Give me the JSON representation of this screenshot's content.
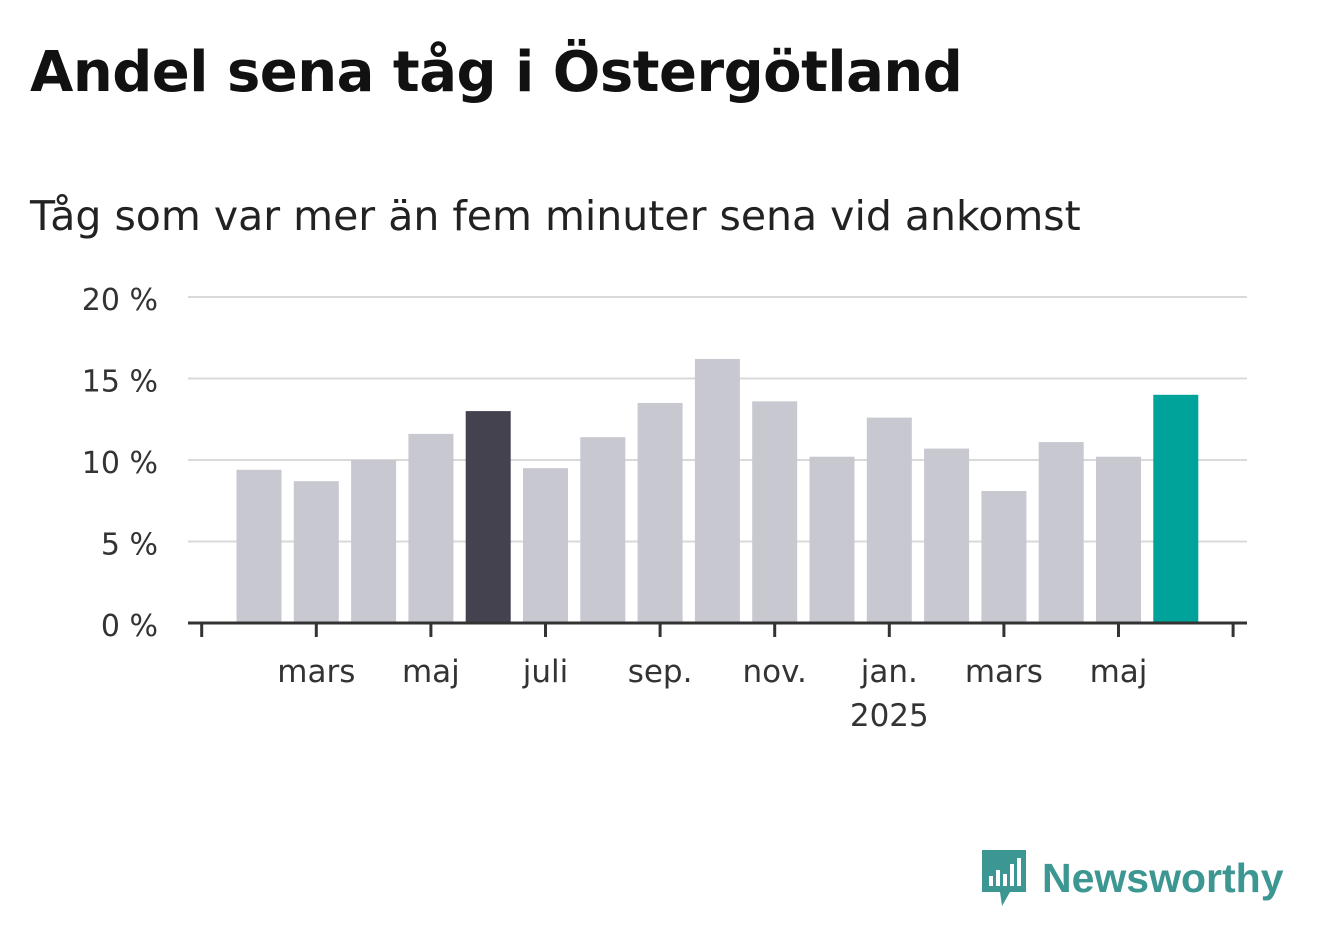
{
  "title": "Andel sena tåg i Östergötland",
  "subtitle": "Tåg som var mer än fem minuter sena vid ankomst",
  "brand": {
    "name": "Newsworthy",
    "color": "#3c9691"
  },
  "colors": {
    "bar": "#c8c8d0",
    "highlight_dark": "#44424f",
    "highlight_latest": "#00a39a",
    "grid": "#d9d9d9",
    "axis": "#333333"
  },
  "chart_data": {
    "type": "bar",
    "categories": [
      "2024-02",
      "2024-03",
      "2024-04",
      "2024-05",
      "2024-06",
      "2024-07",
      "2024-08",
      "2024-09",
      "2024-10",
      "2024-11",
      "2024-12",
      "2025-01",
      "2025-02",
      "2025-03",
      "2025-04",
      "2025-05",
      "2025-06"
    ],
    "values": [
      9.4,
      8.7,
      10.0,
      11.6,
      13.0,
      9.5,
      11.4,
      13.5,
      16.2,
      13.6,
      10.2,
      12.6,
      10.7,
      8.1,
      11.1,
      10.2,
      14.0
    ],
    "highlight": {
      "dark_index": 4,
      "latest_index": 16
    },
    "ylim": [
      0,
      20
    ],
    "yticks": [
      0,
      5,
      10,
      15,
      20
    ],
    "ytick_labels": [
      "0 %",
      "5 %",
      "10 %",
      "15 %",
      "20 %"
    ],
    "xtick_labels": [
      {
        "category": "2024-03",
        "label": "mars"
      },
      {
        "category": "2024-05",
        "label": "maj"
      },
      {
        "category": "2024-07",
        "label": "juli"
      },
      {
        "category": "2024-09",
        "label": "sep."
      },
      {
        "category": "2024-11",
        "label": "nov."
      },
      {
        "category": "2025-01",
        "label": "jan.",
        "sublabel": "2025"
      },
      {
        "category": "2025-03",
        "label": "mars"
      },
      {
        "category": "2025-05",
        "label": "maj"
      }
    ],
    "grid": true,
    "xlabel": "",
    "ylabel": ""
  }
}
